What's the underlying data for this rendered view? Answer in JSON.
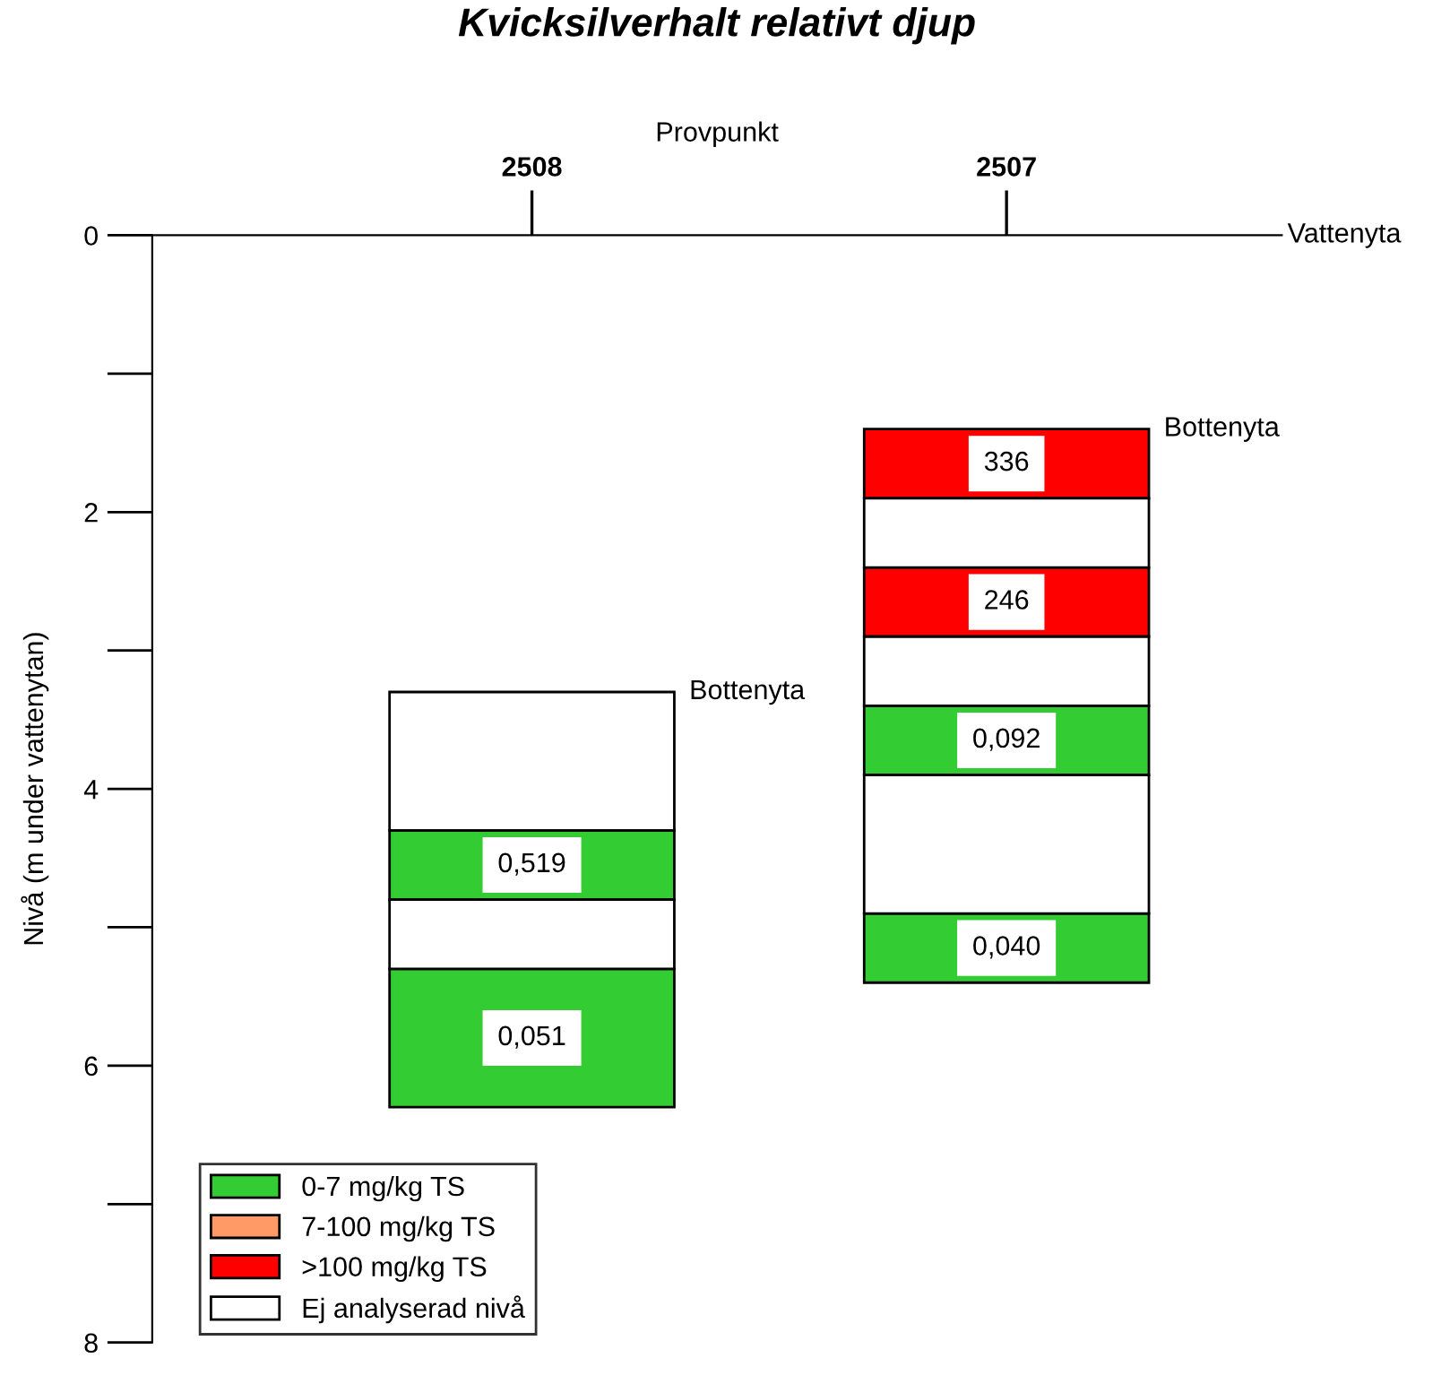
{
  "chart_data": {
    "type": "bar",
    "title": "Kvicksilverhalt relativt djup",
    "xlabel": "Provpunkt",
    "ylabel": "Nivå (m under vattenytan)",
    "categories": [
      "2508",
      "2507"
    ],
    "series": [
      {
        "name": "0-7 mg/kg TS",
        "color": "#33cc33",
        "base": [
          4.3,
          3.4
        ],
        "values": [
          0.5,
          0.5
        ]
      },
      {
        "color": "#33cc33",
        "base": [
          5.3,
          4.9
        ],
        "values": [
          1.0,
          0.5
        ]
      },
      {
        "name": "7-100 mg/kg TS",
        "color": "#ff9966",
        "base": [
          null,
          null
        ],
        "values": [
          null,
          null
        ]
      },
      {
        "name": ">100 mg/kg TS",
        "color": "#ff0000",
        "base": [
          null,
          1.4
        ],
        "values": [
          null,
          0.5
        ]
      },
      {
        "color": "#ff0000",
        "base": [
          null,
          2.4
        ],
        "values": [
          null,
          0.5
        ]
      },
      {
        "name": "Ej analyserad nivå",
        "color": "#ffffff",
        "base": [
          3.3,
          1.9
        ],
        "values": [
          1.0,
          0.5
        ]
      },
      {
        "color": "#ffffff",
        "base": [
          4.8,
          2.9
        ],
        "values": [
          0.5,
          0.5
        ]
      },
      {
        "color": "#ffffff",
        "base": [
          null,
          3.9
        ],
        "values": [
          null,
          1.0
        ]
      }
    ],
    "ylim": [
      8,
      0
    ],
    "yticks": [
      0,
      2,
      4,
      6,
      8
    ],
    "annotations": [
      "Bottenyta",
      "Bottenyta",
      "Vattenyta",
      {
        "text": "0,519",
        "x": "2508",
        "y": 4.3
      },
      {
        "text": "0,051",
        "x": "2508",
        "y": 5.3
      },
      {
        "text": "336",
        "x": "2507",
        "y": 1.4
      },
      {
        "text": "246",
        "x": "2507",
        "y": 2.4
      },
      {
        "text": "0,092",
        "x": "2507",
        "y": 3.4
      },
      {
        "text": "0,040",
        "x": "2507",
        "y": 4.9
      }
    ],
    "grid": false,
    "legend": "bottom left"
  }
}
